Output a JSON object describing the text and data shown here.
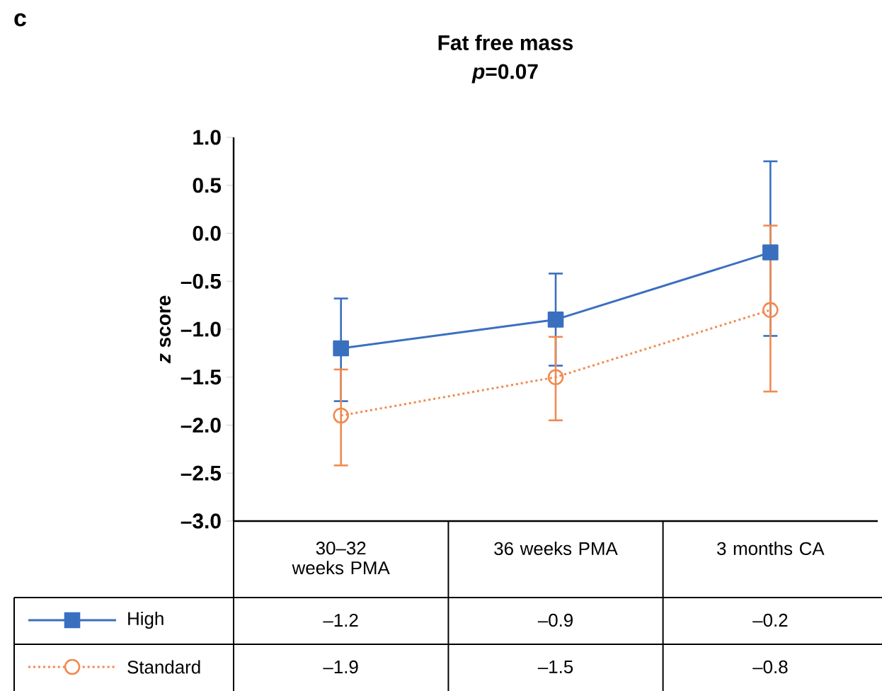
{
  "chart_data": {
    "type": "line",
    "title": "Fat free mass",
    "subtitle": "*p*=0.07",
    "ylabel": "*z* score",
    "annotations": [
      "c"
    ],
    "categories": [
      "30–32 weeks PMA",
      "36 weeks PMA",
      "3 months CA"
    ],
    "series": [
      {
        "name": "High",
        "color": "#3a6fc0",
        "marker": "square",
        "line_style": "solid",
        "values": [
          -1.2,
          -0.9,
          -0.2
        ],
        "value_labels": [
          "–1.2",
          "–0.9",
          "–0.2"
        ],
        "errors": [
          [
            -1.75,
            -0.68
          ],
          [
            -1.38,
            -0.42
          ],
          [
            -1.07,
            0.75
          ]
        ]
      },
      {
        "name": "Standard",
        "color": "#f08a50",
        "marker": "circle",
        "line_style": "dotted",
        "values": [
          -1.9,
          -1.5,
          -0.8
        ],
        "value_labels": [
          "–1.9",
          "–1.5",
          "–0.8"
        ],
        "errors": [
          [
            -2.42,
            -1.42
          ],
          [
            -1.95,
            -1.08
          ],
          [
            -1.65,
            0.08
          ]
        ]
      }
    ],
    "ylim": [
      -3.0,
      1.0
    ],
    "yticks": [
      {
        "value": -3.0,
        "label": "–3.0"
      },
      {
        "value": -2.5,
        "label": "–2.5"
      },
      {
        "value": -2.0,
        "label": "–2.0"
      },
      {
        "value": -1.5,
        "label": "–1.5"
      },
      {
        "value": -1.0,
        "label": "–1.0"
      },
      {
        "value": -0.5,
        "label": "–0.5"
      },
      {
        "value": 0.0,
        "label": "0.0"
      },
      {
        "value": 0.5,
        "label": "0.5"
      },
      {
        "value": 1.0,
        "label": "1.0"
      }
    ],
    "legend": "bottom left",
    "grid": false
  }
}
